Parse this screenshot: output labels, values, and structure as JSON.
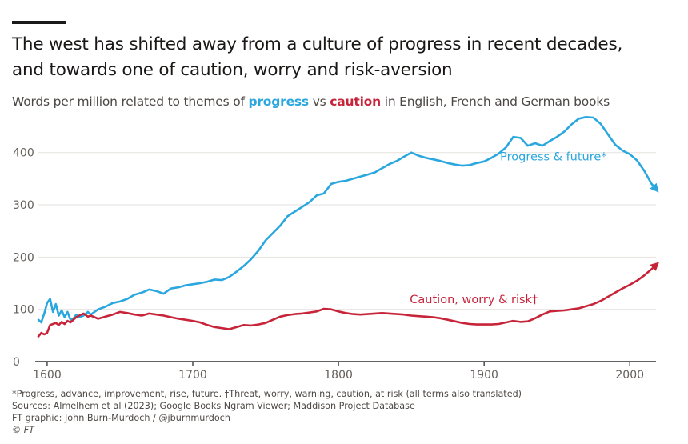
{
  "header": {
    "title_line1": "The west has shifted away from a culture of progress in recent decades,",
    "title_line2": "and towards one of caution, worry and risk-aversion",
    "subtitle_pre": "Words per million related to themes of ",
    "subtitle_progress": "progress",
    "subtitle_mid": " vs ",
    "subtitle_caution": "caution",
    "subtitle_post": " in English, French and German books"
  },
  "footer": {
    "note": "*Progress, advance, improvement, rise, future. †Threat, worry, warning, caution, at risk (all terms also translated)",
    "sources": "Sources: Almelhem et al (2023); Google Books Ngram Viewer; Maddison Project Database",
    "credit": "FT graphic: John Burn-Murdoch / @jburnmurdoch",
    "copyright": "© FT"
  },
  "colors": {
    "progress": "#2aa7de",
    "caution": "#c7243a",
    "grid": "#e6e2df",
    "axis": "#33302e",
    "tick_text": "#66605c"
  },
  "chart_data": {
    "type": "line",
    "title": "The west has shifted away from a culture of progress in recent decades, and towards one of caution, worry and risk-aversion",
    "xlabel": "",
    "ylabel": "Words per million",
    "xlim": [
      1594,
      2018
    ],
    "ylim": [
      0,
      470
    ],
    "x_ticks": [
      1600,
      1700,
      1800,
      1900,
      2000
    ],
    "y_ticks": [
      0,
      100,
      200,
      300,
      400
    ],
    "grid": true,
    "legend": "inline labels",
    "series": [
      {
        "name": "Progress & future*",
        "key": "progress",
        "x": [
          1594,
          1596,
          1598,
          1600,
          1602,
          1604,
          1606,
          1608,
          1610,
          1612,
          1614,
          1616,
          1618,
          1620,
          1622,
          1625,
          1628,
          1630,
          1635,
          1640,
          1645,
          1650,
          1655,
          1660,
          1665,
          1670,
          1675,
          1680,
          1685,
          1690,
          1695,
          1700,
          1705,
          1710,
          1715,
          1720,
          1725,
          1730,
          1735,
          1740,
          1745,
          1750,
          1755,
          1760,
          1765,
          1770,
          1775,
          1780,
          1785,
          1790,
          1795,
          1800,
          1805,
          1810,
          1815,
          1820,
          1825,
          1830,
          1835,
          1840,
          1845,
          1850,
          1855,
          1860,
          1865,
          1870,
          1875,
          1880,
          1885,
          1890,
          1895,
          1900,
          1905,
          1910,
          1915,
          1920,
          1925,
          1930,
          1935,
          1940,
          1945,
          1950,
          1955,
          1960,
          1965,
          1970,
          1975,
          1980,
          1985,
          1990,
          1995,
          2000,
          2005,
          2010,
          2015,
          2018
        ],
        "values": [
          80,
          75,
          92,
          112,
          120,
          95,
          110,
          88,
          98,
          85,
          95,
          80,
          82,
          90,
          85,
          88,
          95,
          90,
          100,
          105,
          112,
          115,
          120,
          128,
          132,
          138,
          135,
          130,
          140,
          142,
          146,
          148,
          150,
          153,
          157,
          156,
          162,
          172,
          183,
          196,
          212,
          232,
          246,
          260,
          278,
          287,
          296,
          305,
          318,
          322,
          340,
          344,
          346,
          350,
          354,
          358,
          362,
          370,
          378,
          384,
          392,
          400,
          394,
          390,
          387,
          384,
          380,
          377,
          375,
          376,
          380,
          383,
          390,
          398,
          410,
          430,
          428,
          413,
          418,
          413,
          422,
          430,
          440,
          454,
          465,
          468,
          467,
          455,
          435,
          415,
          404,
          397,
          385,
          365,
          340,
          330
        ],
        "label": "Progress & future*",
        "label_x": 1911,
        "label_y": 385,
        "label_anchor": "start"
      },
      {
        "name": "Caution, worry & risk†",
        "key": "caution",
        "x": [
          1594,
          1596,
          1598,
          1600,
          1602,
          1604,
          1606,
          1608,
          1610,
          1612,
          1614,
          1616,
          1618,
          1620,
          1622,
          1625,
          1628,
          1630,
          1635,
          1640,
          1645,
          1650,
          1655,
          1660,
          1665,
          1670,
          1675,
          1680,
          1685,
          1690,
          1695,
          1700,
          1705,
          1710,
          1715,
          1720,
          1725,
          1730,
          1735,
          1740,
          1745,
          1750,
          1755,
          1760,
          1765,
          1770,
          1775,
          1780,
          1785,
          1790,
          1795,
          1800,
          1805,
          1810,
          1815,
          1820,
          1825,
          1830,
          1835,
          1840,
          1845,
          1850,
          1855,
          1860,
          1865,
          1870,
          1875,
          1880,
          1885,
          1890,
          1895,
          1900,
          1905,
          1910,
          1915,
          1920,
          1925,
          1930,
          1935,
          1940,
          1945,
          1950,
          1955,
          1960,
          1965,
          1970,
          1975,
          1980,
          1985,
          1990,
          1995,
          2000,
          2005,
          2010,
          2015,
          2018
        ],
        "values": [
          48,
          55,
          52,
          55,
          70,
          72,
          74,
          70,
          76,
          72,
          78,
          75,
          80,
          85,
          88,
          92,
          86,
          88,
          82,
          86,
          90,
          95,
          93,
          90,
          88,
          92,
          90,
          88,
          85,
          82,
          80,
          78,
          75,
          70,
          66,
          64,
          62,
          66,
          70,
          69,
          71,
          74,
          80,
          86,
          89,
          91,
          92,
          94,
          96,
          101,
          100,
          96,
          93,
          91,
          90,
          91,
          92,
          93,
          92,
          91,
          90,
          88,
          87,
          86,
          85,
          83,
          80,
          77,
          74,
          72,
          71,
          71,
          71,
          72,
          75,
          78,
          76,
          77,
          83,
          90,
          96,
          97,
          98,
          100,
          102,
          106,
          110,
          116,
          124,
          132,
          140,
          147,
          155,
          165,
          177,
          185
        ],
        "label": "Caution, worry & risk†",
        "label_x": 1849,
        "label_y": 112,
        "label_anchor": "start"
      }
    ]
  }
}
